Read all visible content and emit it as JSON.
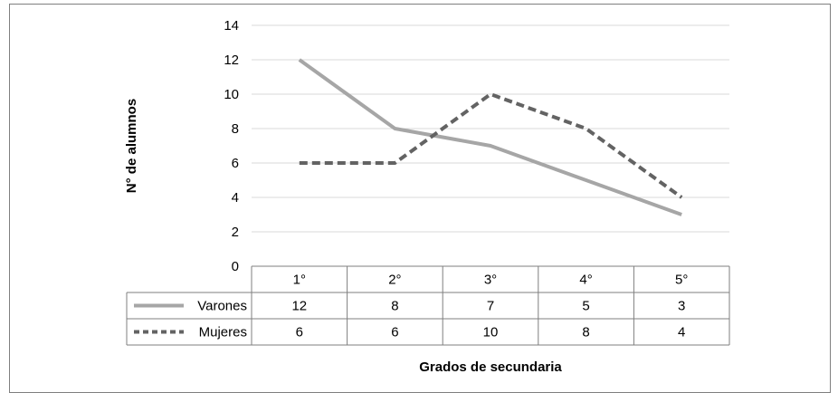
{
  "chart_data": {
    "type": "line",
    "categories": [
      "1°",
      "2°",
      "3°",
      "4°",
      "5°"
    ],
    "series": [
      {
        "name": "Varones",
        "values": [
          12,
          8,
          7,
          5,
          3
        ],
        "color": "#a6a6a6",
        "dash": "solid"
      },
      {
        "name": "Mujeres",
        "values": [
          6,
          6,
          10,
          8,
          4
        ],
        "color": "#636363",
        "dash": "dashed"
      }
    ],
    "yticks": [
      "0",
      "2",
      "4",
      "6",
      "8",
      "10",
      "12",
      "14"
    ],
    "ylim": [
      0,
      14
    ],
    "xlabel": "Grados de secundaria",
    "ylabel": "N° de alumnos",
    "grid": true,
    "legend": "data-table",
    "gridline_color": "#d9d9d9"
  }
}
